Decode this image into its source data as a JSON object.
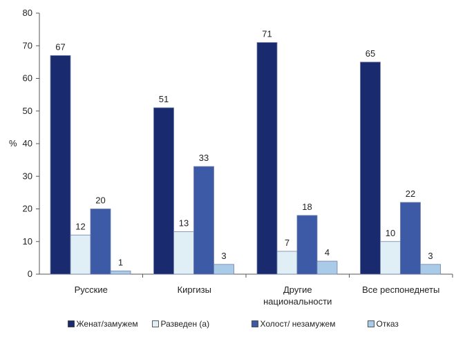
{
  "chart_data": {
    "type": "bar",
    "ylabel": "%",
    "ylim": [
      0,
      80
    ],
    "yticks": [
      0,
      10,
      20,
      30,
      40,
      50,
      60,
      70,
      80
    ],
    "grid": false,
    "legend_position": "bottom",
    "categories": [
      [
        "Русские"
      ],
      [
        "Киргизы"
      ],
      [
        "Другие",
        "национальности"
      ],
      [
        "Все респонеднеты"
      ]
    ],
    "series": [
      {
        "name": "Женат/замужем",
        "color": "#1a2a6e",
        "values": [
          67,
          51,
          71,
          65
        ]
      },
      {
        "name": "Разведен (а)",
        "color": "#e0eef6",
        "values": [
          12,
          13,
          7,
          10
        ]
      },
      {
        "name": "Холост/ незамужем",
        "color": "#3d5aa6",
        "values": [
          20,
          33,
          18,
          22
        ]
      },
      {
        "name": "Отказ",
        "color": "#a9cbe8",
        "values": [
          1,
          3,
          4,
          3
        ]
      }
    ]
  }
}
